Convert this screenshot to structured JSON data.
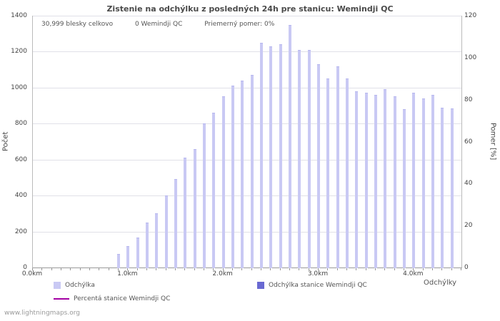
{
  "title": "Zistenie na odchýlku z posledných 24h pre stanicu: Wemindji QC",
  "stats": {
    "total": "30,999 blesky celkovo",
    "station": "0 Wemindji QC",
    "ratio": "Priemerný pomer: 0%"
  },
  "axes": {
    "y_left_label": "Počet",
    "y_right_label": "Pomer [%]",
    "x_label": "Odchýlky",
    "y_left_ticks": [
      0,
      200,
      400,
      600,
      800,
      1000,
      1200,
      1400
    ],
    "y_right_ticks": [
      0,
      20,
      40,
      60,
      80,
      100,
      120
    ],
    "x_ticks": [
      {
        "km": 0,
        "label": "0.0km"
      },
      {
        "km": 1,
        "label": "1.0km"
      },
      {
        "km": 2,
        "label": "2.0km"
      },
      {
        "km": 3,
        "label": "3.0km"
      },
      {
        "km": 4,
        "label": "4.0km"
      }
    ]
  },
  "legend": [
    {
      "label": "Odchýlka",
      "color": "#c9c9f4"
    },
    {
      "label": "Odchýlka stanice Wemindji QC",
      "color": "#6969d2"
    },
    {
      "label": "Percentá stanice Wemindji QC",
      "color": "#a300a3"
    }
  ],
  "footer": "www.lightningmaps.org",
  "chart_data": {
    "type": "bar",
    "title": "Zistenie na odchýlku z posledných 24h pre stanicu: Wemindji QC",
    "xlabel": "Odchýlky",
    "ylabel_left": "Počet",
    "ylabel_right": "Pomer [%]",
    "ylim_left": [
      0,
      1400
    ],
    "ylim_right": [
      0,
      120
    ],
    "xlim": [
      0,
      4.5
    ],
    "x_unit": "km",
    "grid": true,
    "legend_position": "bottom",
    "x": [
      0.9,
      1.0,
      1.1,
      1.2,
      1.3,
      1.4,
      1.5,
      1.6,
      1.7,
      1.8,
      1.9,
      2.0,
      2.1,
      2.2,
      2.3,
      2.4,
      2.5,
      2.6,
      2.7,
      2.8,
      2.9,
      3.0,
      3.1,
      3.2,
      3.3,
      3.4,
      3.5,
      3.6,
      3.7,
      3.8,
      3.9,
      4.0,
      4.1,
      4.2,
      4.3,
      4.4
    ],
    "series": [
      {
        "name": "Odchýlka",
        "axis": "left",
        "values": [
          75,
          120,
          165,
          250,
          300,
          400,
          490,
          610,
          660,
          800,
          860,
          950,
          1010,
          1040,
          1070,
          1250,
          1230,
          1240,
          1350,
          1210,
          1210,
          1130,
          1050,
          1120,
          1050,
          980,
          970,
          960,
          990,
          950,
          880,
          970,
          940,
          960,
          890,
          885
        ]
      },
      {
        "name": "Odchýlka stanice Wemindji QC",
        "axis": "left",
        "values": [
          0,
          0,
          0,
          0,
          0,
          0,
          0,
          0,
          0,
          0,
          0,
          0,
          0,
          0,
          0,
          0,
          0,
          0,
          0,
          0,
          0,
          0,
          0,
          0,
          0,
          0,
          0,
          0,
          0,
          0,
          0,
          0,
          0,
          0,
          0,
          0
        ]
      },
      {
        "name": "Percentá stanice Wemindji QC",
        "axis": "right",
        "values": [
          0,
          0,
          0,
          0,
          0,
          0,
          0,
          0,
          0,
          0,
          0,
          0,
          0,
          0,
          0,
          0,
          0,
          0,
          0,
          0,
          0,
          0,
          0,
          0,
          0,
          0,
          0,
          0,
          0,
          0,
          0,
          0,
          0,
          0,
          0,
          0
        ]
      }
    ]
  }
}
